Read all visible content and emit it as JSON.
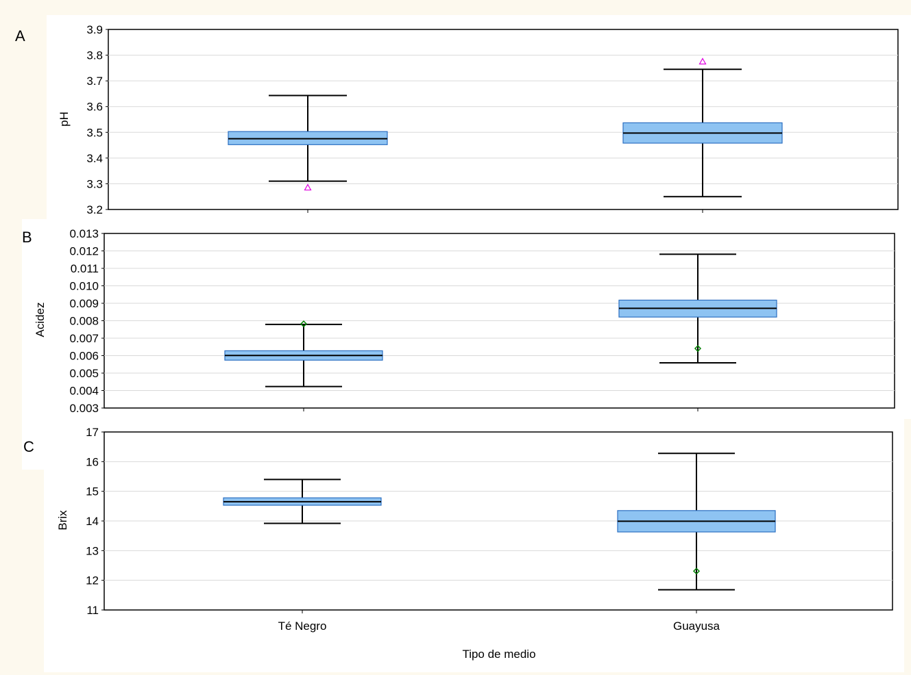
{
  "chart_data": [
    {
      "type": "box",
      "panel_label": "A",
      "ylabel": "pH",
      "xlabel": "",
      "ylim": [
        3.2,
        3.9
      ],
      "yticks": [
        "3.2",
        "3.3",
        "3.4",
        "3.5",
        "3.6",
        "3.7",
        "3.8",
        "3.9"
      ],
      "categories": [
        "Té Negro",
        "Guayusa"
      ],
      "boxes": [
        {
          "category": "Té Negro",
          "whisker_low": 3.31,
          "q1": 3.452,
          "median": 3.475,
          "q3": 3.503,
          "whisker_high": 3.643,
          "outliers": [
            3.285
          ]
        },
        {
          "category": "Guayusa",
          "whisker_low": 3.25,
          "q1": 3.458,
          "median": 3.497,
          "q3": 3.537,
          "whisker_high": 3.745,
          "outliers": [
            3.775
          ]
        }
      ],
      "outlier_marker": "triangle",
      "outlier_color": "#e000e0",
      "box_color": "#8ec3f2",
      "grid": true
    },
    {
      "type": "box",
      "panel_label": "B",
      "ylabel": "Acidez",
      "xlabel": "",
      "ylim": [
        0.003,
        0.013
      ],
      "yticks": [
        "0.003",
        "0.004",
        "0.005",
        "0.006",
        "0.007",
        "0.008",
        "0.009",
        "0.010",
        "0.011",
        "0.012",
        "0.013"
      ],
      "categories": [
        "Té Negro",
        "Guayusa"
      ],
      "boxes": [
        {
          "category": "Té Negro",
          "whisker_low": 0.00423,
          "q1": 0.00574,
          "median": 0.00601,
          "q3": 0.00628,
          "whisker_high": 0.00779,
          "outliers": [
            0.00782
          ]
        },
        {
          "category": "Guayusa",
          "whisker_low": 0.00559,
          "q1": 0.00821,
          "median": 0.00871,
          "q3": 0.00918,
          "whisker_high": 0.01181,
          "outliers": [
            0.00641
          ]
        }
      ],
      "outlier_marker": "diamond",
      "outlier_color": "#008000",
      "box_color": "#8ec3f2",
      "grid": true
    },
    {
      "type": "box",
      "panel_label": "C",
      "ylabel": "Brix",
      "xlabel": "Tipo de medio",
      "ylim": [
        11,
        17
      ],
      "yticks": [
        "11",
        "12",
        "13",
        "14",
        "15",
        "16",
        "17"
      ],
      "categories": [
        "Té Negro",
        "Guayusa"
      ],
      "boxes": [
        {
          "category": "Té Negro",
          "whisker_low": 13.92,
          "q1": 14.53,
          "median": 14.65,
          "q3": 14.78,
          "whisker_high": 15.4,
          "outliers": []
        },
        {
          "category": "Guayusa",
          "whisker_low": 11.68,
          "q1": 13.63,
          "median": 13.99,
          "q3": 14.35,
          "whisker_high": 16.28,
          "outliers": [
            12.31
          ]
        }
      ],
      "outlier_marker": "diamond",
      "outlier_color": "#008000",
      "box_color": "#8ec3f2",
      "grid": true
    }
  ]
}
